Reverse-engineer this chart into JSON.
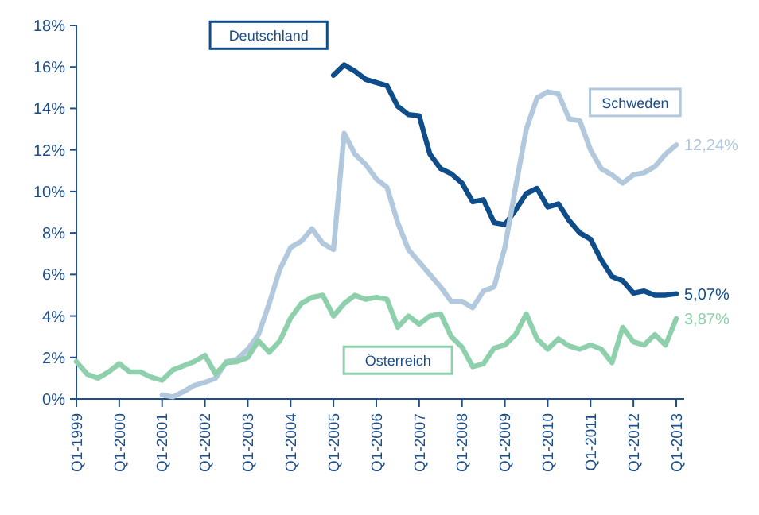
{
  "chart_data": {
    "type": "line",
    "ylim": [
      0,
      18
    ],
    "categories": [
      "Q1-1999",
      null,
      null,
      null,
      "Q1-2000",
      null,
      null,
      null,
      "Q1-2001",
      null,
      null,
      null,
      "Q1-2002",
      null,
      null,
      null,
      "Q1-2003",
      null,
      null,
      null,
      "Q1-2004",
      null,
      null,
      null,
      "Q1-2005",
      null,
      null,
      null,
      "Q1-2006",
      null,
      null,
      null,
      "Q1-2007",
      null,
      null,
      null,
      "Q1-2008",
      null,
      null,
      null,
      "Q1-2009",
      null,
      null,
      null,
      "Q1-2010",
      null,
      null,
      null,
      "Q1-2011",
      null,
      null,
      null,
      "Q1-2012",
      null,
      null,
      null,
      "Q1-2013"
    ],
    "yticks": [
      {
        "value": 0,
        "label": "0%"
      },
      {
        "value": 2,
        "label": "2%"
      },
      {
        "value": 4,
        "label": "4%"
      },
      {
        "value": 6,
        "label": "6%"
      },
      {
        "value": 8,
        "label": "8%"
      },
      {
        "value": 10,
        "label": "10%"
      },
      {
        "value": 12,
        "label": "12%"
      },
      {
        "value": 14,
        "label": "14%"
      },
      {
        "value": 16,
        "label": "16%"
      },
      {
        "value": 18,
        "label": "18%"
      }
    ],
    "grid": false,
    "marker": "none",
    "line_style": "solid",
    "series": [
      {
        "name": "Deutschland",
        "color": "#0f4c8a",
        "values": [
          null,
          null,
          null,
          null,
          null,
          null,
          null,
          null,
          null,
          null,
          null,
          null,
          null,
          null,
          null,
          null,
          null,
          null,
          null,
          null,
          null,
          null,
          null,
          null,
          15.6,
          16.1,
          15.8,
          15.4,
          15.25,
          15.1,
          14.1,
          13.7,
          13.65,
          11.8,
          11.1,
          10.85,
          10.4,
          9.5,
          9.6,
          8.5,
          8.4,
          9.1,
          9.9,
          10.15,
          9.25,
          9.4,
          8.6,
          8.0,
          7.7,
          6.7,
          5.9,
          5.7,
          5.1,
          5.2,
          5.0,
          5.0,
          5.07
        ]
      },
      {
        "name": "Schweden",
        "color": "#b2c8dc",
        "values": [
          null,
          null,
          null,
          null,
          null,
          null,
          null,
          null,
          0.2,
          0.1,
          0.35,
          0.65,
          0.8,
          1.0,
          1.8,
          1.9,
          2.4,
          3.1,
          4.6,
          6.25,
          7.3,
          7.6,
          8.2,
          7.5,
          7.2,
          12.8,
          11.8,
          11.3,
          10.6,
          10.2,
          8.5,
          7.2,
          6.6,
          6.0,
          5.4,
          4.7,
          4.7,
          4.4,
          5.2,
          5.4,
          7.3,
          10.2,
          13.0,
          14.5,
          14.8,
          14.7,
          13.5,
          13.4,
          12.0,
          11.1,
          10.8,
          10.4,
          10.8,
          10.9,
          11.2,
          11.8,
          12.24
        ]
      },
      {
        "name": "Österreich",
        "color": "#8fd0ac",
        "values": [
          1.8,
          1.2,
          1.0,
          1.3,
          1.7,
          1.3,
          1.3,
          1.05,
          0.9,
          1.4,
          1.6,
          1.8,
          2.1,
          1.2,
          1.75,
          1.8,
          2.0,
          2.8,
          2.25,
          2.8,
          3.9,
          4.6,
          4.9,
          5.0,
          4.0,
          4.6,
          5.0,
          4.8,
          4.9,
          4.8,
          3.45,
          4.0,
          3.6,
          4.0,
          4.1,
          3.0,
          2.5,
          1.55,
          1.7,
          2.45,
          2.6,
          3.1,
          4.1,
          2.9,
          2.4,
          2.9,
          2.55,
          2.4,
          2.6,
          2.4,
          1.75,
          3.45,
          2.75,
          2.6,
          3.1,
          2.6,
          3.87
        ]
      }
    ],
    "annotations": [
      {
        "text": "5,07%",
        "x": "Q1-2013",
        "y": 5.07
      },
      {
        "text": "12,24%",
        "x": "Q1-2013",
        "y": 12.24
      },
      {
        "text": "3,87%",
        "x": "Q1-2013",
        "y": 3.87
      }
    ]
  }
}
